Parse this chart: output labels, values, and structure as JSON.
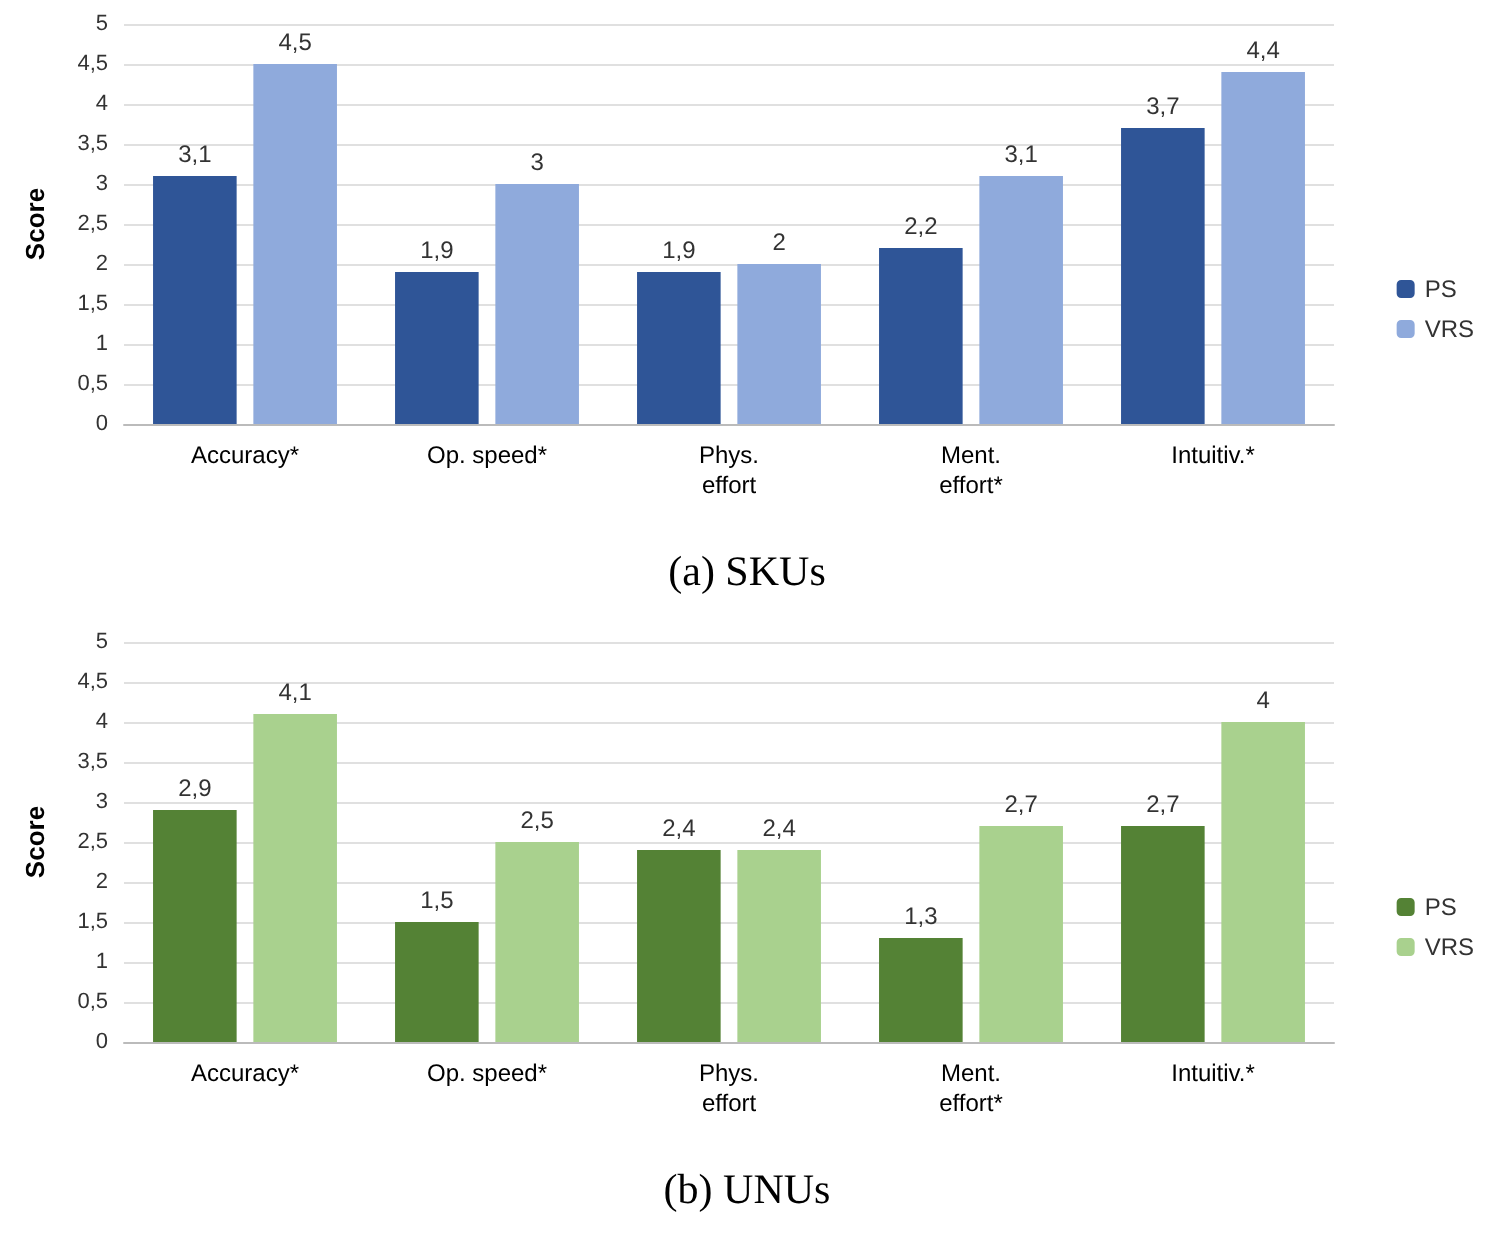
{
  "chart_data": [
    {
      "type": "bar",
      "title": "(a) SKUs",
      "ylabel": "Score",
      "categories": [
        "Accuracy*",
        "Op. speed*",
        "Phys.\neffort",
        "Ment.\neffort*",
        "Intuitiv.*"
      ],
      "series": [
        {
          "name": "PS",
          "color": "#2f5597",
          "values": [
            3.1,
            1.9,
            1.9,
            2.2,
            3.7
          ],
          "value_labels": [
            "3,1",
            "1,9",
            "1,9",
            "2,2",
            "3,7"
          ]
        },
        {
          "name": "VRS",
          "color": "#8faadc",
          "values": [
            4.5,
            3,
            2,
            3.1,
            4.4
          ],
          "value_labels": [
            "4,5",
            "3",
            "2",
            "3,1",
            "4,4"
          ]
        }
      ],
      "ylim": [
        0,
        5
      ],
      "yticks": [
        0,
        {
          "value": 0.5,
          "label": "0,5"
        },
        1,
        {
          "value": 1.5,
          "label": "1,5"
        },
        2,
        {
          "value": 2.5,
          "label": "2,5"
        },
        3,
        {
          "value": 3.5,
          "label": "3,5"
        },
        4,
        {
          "value": 4.5,
          "label": "4,5"
        },
        5
      ],
      "grid": "y",
      "legend": "right"
    },
    {
      "type": "bar",
      "title": "(b) UNUs",
      "ylabel": "Score",
      "categories": [
        "Accuracy*",
        "Op. speed*",
        "Phys.\neffort",
        "Ment.\neffort*",
        "Intuitiv.*"
      ],
      "series": [
        {
          "name": "PS",
          "color": "#548235",
          "values": [
            2.9,
            1.5,
            2.4,
            1.3,
            2.7
          ],
          "value_labels": [
            "2,9",
            "1,5",
            "2,4",
            "1,3",
            "2,7"
          ]
        },
        {
          "name": "VRS",
          "color": "#a9d18e",
          "values": [
            4.1,
            2.5,
            2.4,
            2.7,
            4
          ],
          "value_labels": [
            "4,1",
            "2,5",
            "2,4",
            "2,7",
            "4"
          ]
        }
      ],
      "ylim": [
        0,
        5
      ],
      "yticks": [
        0,
        {
          "value": 0.5,
          "label": "0,5"
        },
        1,
        {
          "value": 1.5,
          "label": "1,5"
        },
        2,
        {
          "value": 2.5,
          "label": "2,5"
        },
        3,
        {
          "value": 3.5,
          "label": "3,5"
        },
        4,
        {
          "value": 4.5,
          "label": "4,5"
        },
        5
      ],
      "grid": "y",
      "legend": "right"
    }
  ]
}
